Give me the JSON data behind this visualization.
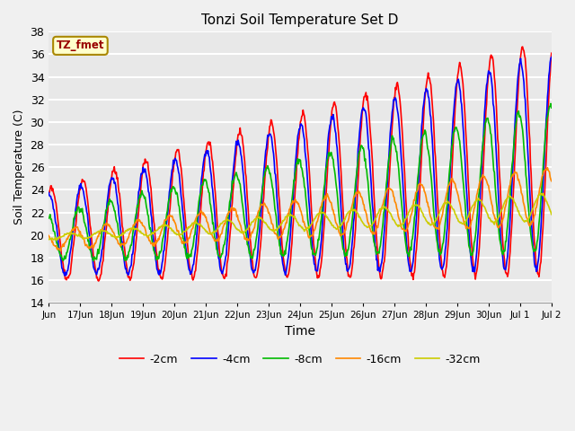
{
  "title": "Tonzi Soil Temperature Set D",
  "xlabel": "Time",
  "ylabel": "Soil Temperature (C)",
  "ylim": [
    14,
    38
  ],
  "yticks": [
    14,
    16,
    18,
    20,
    22,
    24,
    26,
    28,
    30,
    32,
    34,
    36,
    38
  ],
  "series_colors": [
    "#ff0000",
    "#0000ff",
    "#00bb00",
    "#ff8800",
    "#cccc00"
  ],
  "series_labels": [
    "-2cm",
    "-4cm",
    "-8cm",
    "-16cm",
    "-32cm"
  ],
  "legend_label": "TZ_fmet",
  "legend_label_fg": "#990000",
  "legend_label_bg": "#ffffcc",
  "legend_label_edge": "#aa8800",
  "background_color": "#e8e8e8",
  "fig_background": "#f0f0f0",
  "grid_color": "#ffffff",
  "linewidth": 1.2,
  "n_days": 16,
  "points_per_day": 48
}
